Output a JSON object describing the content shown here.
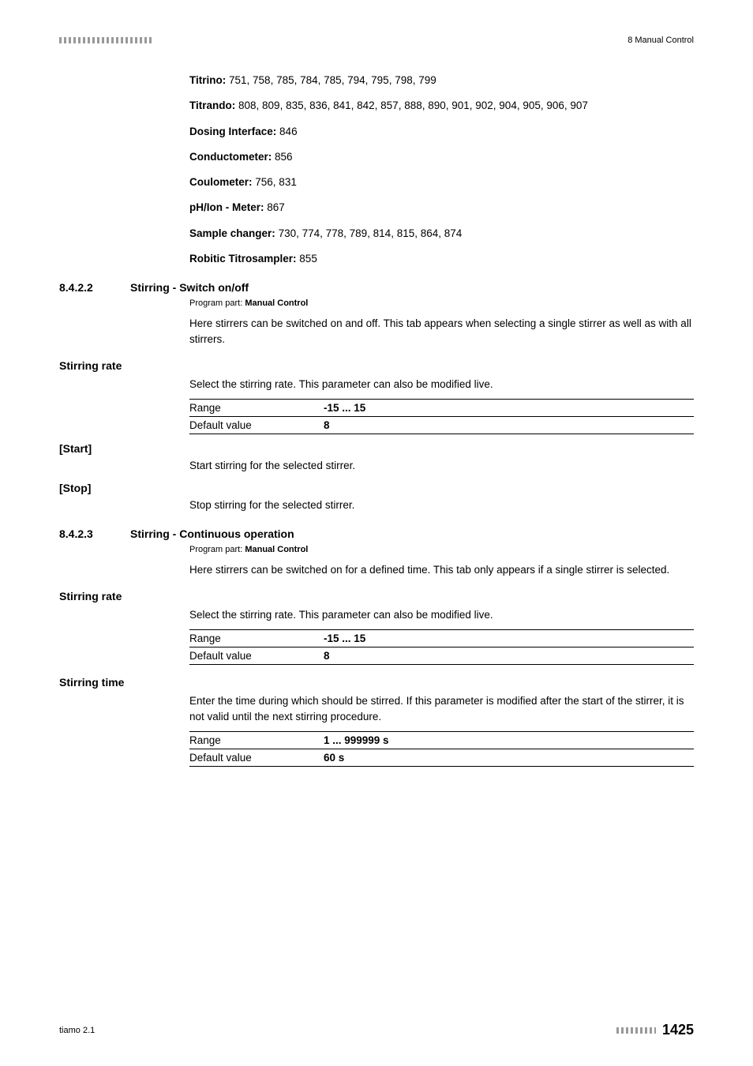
{
  "header": {
    "right_text": "8 Manual Control"
  },
  "intro": {
    "titrino": {
      "label": "Titrino:",
      "value": "751, 758, 785, 784, 785, 794, 795, 798, 799"
    },
    "titrando": {
      "label": "Titrando:",
      "value": "808, 809, 835, 836, 841, 842, 857, 888, 890, 901, 902, 904, 905, 906, 907"
    },
    "dosing": {
      "label": "Dosing Interface:",
      "value": "846"
    },
    "conductometer": {
      "label": "Conductometer:",
      "value": "856"
    },
    "coulometer": {
      "label": "Coulometer:",
      "value": "756, 831"
    },
    "phion": {
      "label": "pH/Ion - Meter:",
      "value": "867"
    },
    "sample_changer": {
      "label": "Sample changer:",
      "value": "730, 774, 778, 789, 814, 815, 864, 874"
    },
    "robitic": {
      "label": "Robitic Titrosampler:",
      "value": "855"
    }
  },
  "section1": {
    "number": "8.4.2.2",
    "title": "Stirring - Switch on/off",
    "program_part_label": "Program part:",
    "program_part_value": "Manual Control",
    "description": "Here stirrers can be switched on and off. This tab appears when selecting a single stirrer as well as with all stirrers.",
    "stirring_rate": {
      "label": "Stirring rate",
      "desc": "Select the stirring rate. This parameter can also be modified live.",
      "range_label": "Range",
      "range_value": "-15 ... 15",
      "default_label": "Default value",
      "default_value": "8"
    },
    "start": {
      "label": "[Start]",
      "desc": "Start stirring for the selected stirrer."
    },
    "stop": {
      "label": "[Stop]",
      "desc": "Stop stirring for the selected stirrer."
    }
  },
  "section2": {
    "number": "8.4.2.3",
    "title": "Stirring - Continuous operation",
    "program_part_label": "Program part:",
    "program_part_value": "Manual Control",
    "description": "Here stirrers can be switched on for a defined time. This tab only appears if a single stirrer is selected.",
    "stirring_rate": {
      "label": "Stirring rate",
      "desc": "Select the stirring rate. This parameter can also be modified live.",
      "range_label": "Range",
      "range_value": "-15 ... 15",
      "default_label": "Default value",
      "default_value": "8"
    },
    "stirring_time": {
      "label": "Stirring time",
      "desc": "Enter the time during which should be stirred. If this parameter is modified after the start of the stirrer, it is not valid until the next stirring procedure.",
      "range_label": "Range",
      "range_value": "1 ... 999999 s",
      "default_label": "Default value",
      "default_value": "60 s"
    }
  },
  "footer": {
    "left": "tiamo 2.1",
    "page": "1425"
  }
}
